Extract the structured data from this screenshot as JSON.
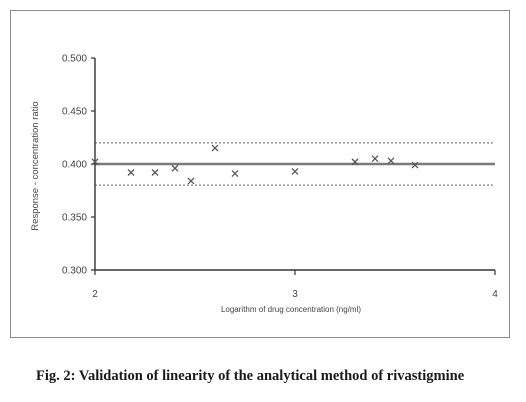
{
  "chart_data": {
    "type": "scatter",
    "title": "",
    "xlabel": "Logarithm of drug concentration (ng/ml)",
    "ylabel": "Response - concentration ratio",
    "xlim": [
      2,
      4
    ],
    "ylim": [
      0.3,
      0.5
    ],
    "x_ticks": [
      "2",
      "3",
      "4"
    ],
    "y_ticks": [
      "0.300",
      "0.350",
      "0.400",
      "0.450",
      "0.500"
    ],
    "grid": false,
    "legend": "none",
    "marker": "x",
    "points": [
      {
        "x": 2.0,
        "y": 0.402
      },
      {
        "x": 2.18,
        "y": 0.392
      },
      {
        "x": 2.3,
        "y": 0.392
      },
      {
        "x": 2.4,
        "y": 0.396
      },
      {
        "x": 2.48,
        "y": 0.384
      },
      {
        "x": 2.6,
        "y": 0.415
      },
      {
        "x": 2.7,
        "y": 0.391
      },
      {
        "x": 3.0,
        "y": 0.393
      },
      {
        "x": 3.3,
        "y": 0.402
      },
      {
        "x": 3.4,
        "y": 0.405
      },
      {
        "x": 3.48,
        "y": 0.403
      },
      {
        "x": 3.6,
        "y": 0.399
      }
    ],
    "reference_lines": [
      {
        "y": 0.4,
        "style": "solid"
      },
      {
        "y": 0.42,
        "style": "dotted"
      },
      {
        "y": 0.38,
        "style": "dotted"
      }
    ],
    "colors": {
      "axis": "#333333",
      "markers": "#5a5a5a",
      "mean_line": "#7a7a7a",
      "limit_lines": "#8a8a8a",
      "text": "#444444"
    }
  },
  "caption": "Fig. 2: Validation of linearity of the analytical method of rivastigmine"
}
